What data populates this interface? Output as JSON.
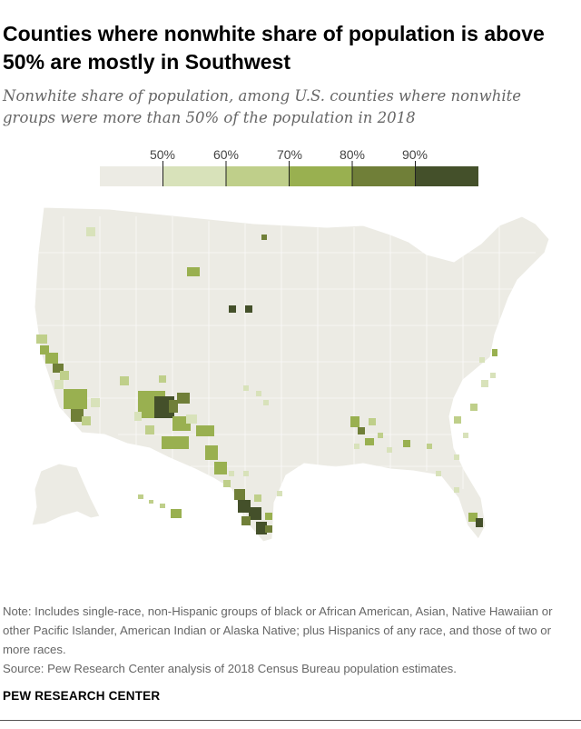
{
  "header": {
    "title": "Counties where nonwhite share of population is above 50% are mostly in Southwest",
    "subtitle": "Nonwhite share of population, among U.S. counties where nonwhite groups were more than 50% of the population in 2018"
  },
  "legend": {
    "ticks": [
      "50%",
      "60%",
      "70%",
      "80%",
      "90%"
    ],
    "bins": [
      {
        "range": [
          0,
          50
        ],
        "color": "#ecebe4"
      },
      {
        "range": [
          50,
          60
        ],
        "color": "#d8e2ba"
      },
      {
        "range": [
          60,
          70
        ],
        "color": "#bfcf8a"
      },
      {
        "range": [
          70,
          80
        ],
        "color": "#99b050"
      },
      {
        "range": [
          80,
          90
        ],
        "color": "#707f38"
      },
      {
        "range": [
          90,
          100
        ],
        "color": "#44502a"
      }
    ]
  },
  "map": {
    "base_color": "#ecebe4",
    "border_color": "#ffffff"
  },
  "footer": {
    "note": "Note: Includes single-race, non-Hispanic groups of black or African American, Asian, Native Hawaiian or other Pacific Islander, American Indian or Alaska Native; plus Hispanics of any race, and those of two or more races.",
    "source": "Source: Pew Research Center analysis of 2018 Census Bureau population estimates.",
    "brand": "PEW RESEARCH CENTER"
  }
}
